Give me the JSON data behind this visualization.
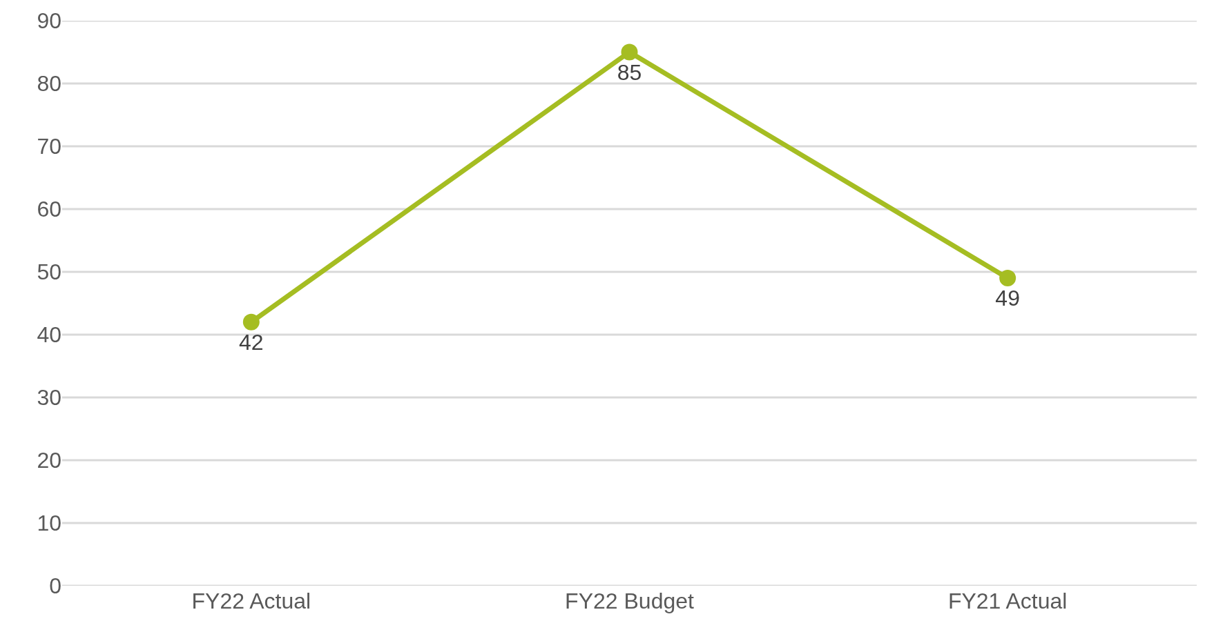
{
  "chart_data": {
    "type": "line",
    "categories": [
      "FY22 Actual",
      "FY22 Budget",
      "FY21 Actual"
    ],
    "series": [
      {
        "color": "#a5bd22",
        "values": [
          42,
          85,
          49
        ]
      }
    ],
    "ylim": [
      0,
      90
    ],
    "yticks": [
      0,
      10,
      20,
      30,
      40,
      50,
      60,
      70,
      80,
      90
    ],
    "grid": "y",
    "data_labels": true,
    "marker": "circle",
    "line_style": "solid"
  }
}
